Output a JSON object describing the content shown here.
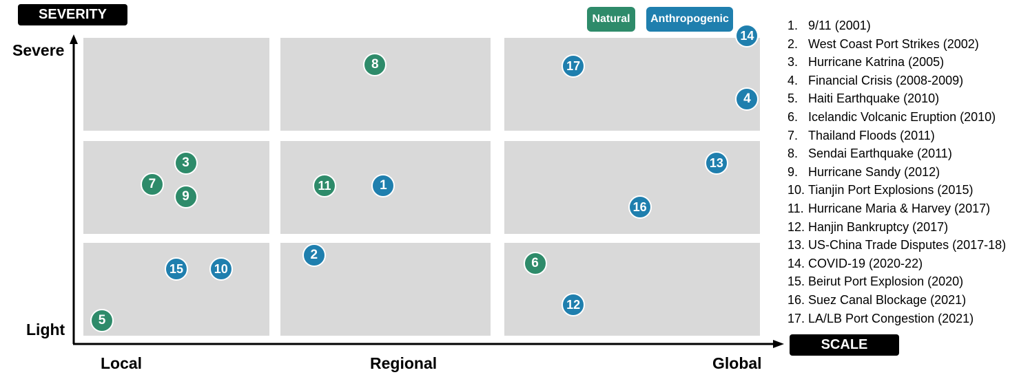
{
  "chart_data": {
    "type": "scatter",
    "y_axis_title": "SEVERITY",
    "x_axis_title": "SCALE",
    "y_ticks": [
      "Severe",
      "Light"
    ],
    "x_ticks": [
      "Local",
      "Regional",
      "Global"
    ],
    "xlim": [
      0,
      3
    ],
    "ylim": [
      0,
      3
    ],
    "grid": "3x3 panels",
    "legend": {
      "placement": "top-right",
      "entries": [
        {
          "name": "Natural",
          "color": "#2e8b6a"
        },
        {
          "name": "Anthropogenic",
          "color": "#1f7fae"
        }
      ]
    },
    "points": [
      {
        "id": "1",
        "x": 1.49,
        "y": 1.52,
        "category": "Anthropogenic"
      },
      {
        "id": "2",
        "x": 1.16,
        "y": 0.87,
        "category": "Anthropogenic"
      },
      {
        "id": "3",
        "x": 0.55,
        "y": 1.76,
        "category": "Natural"
      },
      {
        "id": "4",
        "x": 2.95,
        "y": 2.34,
        "category": "Anthropogenic"
      },
      {
        "id": "5",
        "x": 0.1,
        "y": 0.16,
        "category": "Natural"
      },
      {
        "id": "6",
        "x": 2.12,
        "y": 0.78,
        "category": "Natural"
      },
      {
        "id": "7",
        "x": 0.37,
        "y": 1.53,
        "category": "Natural"
      },
      {
        "id": "8",
        "x": 1.45,
        "y": 2.71,
        "category": "Natural"
      },
      {
        "id": "9",
        "x": 0.55,
        "y": 1.4,
        "category": "Natural"
      },
      {
        "id": "10",
        "x": 0.74,
        "y": 0.72,
        "category": "Anthropogenic"
      },
      {
        "id": "11",
        "x": 1.21,
        "y": 1.52,
        "category": "Natural"
      },
      {
        "id": "12",
        "x": 2.27,
        "y": 0.33,
        "category": "Anthropogenic"
      },
      {
        "id": "13",
        "x": 2.83,
        "y": 1.76,
        "category": "Anthropogenic"
      },
      {
        "id": "14",
        "x": 2.95,
        "y": 3.02,
        "category": "Anthropogenic"
      },
      {
        "id": "15",
        "x": 0.5,
        "y": 0.72,
        "category": "Anthropogenic"
      },
      {
        "id": "16",
        "x": 2.53,
        "y": 1.29,
        "category": "Anthropogenic"
      },
      {
        "id": "17",
        "x": 2.27,
        "y": 2.7,
        "category": "Anthropogenic"
      }
    ],
    "event_list": [
      {
        "num": "1.",
        "label": "9/11 (2001)"
      },
      {
        "num": "2.",
        "label": "West Coast Port Strikes (2002)"
      },
      {
        "num": "3.",
        "label": "Hurricane Katrina (2005)"
      },
      {
        "num": "4.",
        "label": "Financial Crisis (2008-2009)"
      },
      {
        "num": "5.",
        "label": "Haiti Earthquake (2010)"
      },
      {
        "num": "6.",
        "label": "Icelandic Volcanic Eruption (2010)"
      },
      {
        "num": "7.",
        "label": "Thailand Floods (2011)"
      },
      {
        "num": "8.",
        "label": "Sendai Earthquake (2011)"
      },
      {
        "num": "9.",
        "label": "Hurricane Sandy (2012)"
      },
      {
        "num": "10.",
        "label": "Tianjin Port Explosions (2015)"
      },
      {
        "num": "11.",
        "label": "Hurricane Maria & Harvey (2017)"
      },
      {
        "num": "12.",
        "label": "Hanjin Bankruptcy (2017)"
      },
      {
        "num": "13.",
        "label": "US-China Trade Disputes (2017-18)"
      },
      {
        "num": "14.",
        "label": "COVID-19 (2020-22)"
      },
      {
        "num": "15.",
        "label": "Beirut Port Explosion (2020)"
      },
      {
        "num": "16.",
        "label": "Suez Canal Blockage (2021)"
      },
      {
        "num": "17.",
        "label": "LA/LB Port Congestion (2021)"
      }
    ]
  }
}
